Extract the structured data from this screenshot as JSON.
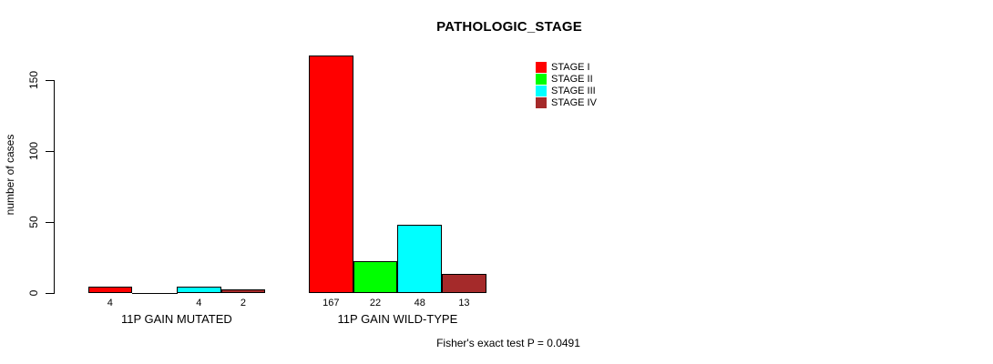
{
  "chart_data": {
    "type": "bar",
    "title": "PATHOLOGIC_STAGE",
    "ylabel": "number of cases",
    "xlabel": "",
    "ylim": [
      0,
      150
    ],
    "yticks": [
      0,
      50,
      100,
      150
    ],
    "grid": false,
    "legend_position": "top-right",
    "categories": [
      "11P GAIN MUTATED",
      "11P GAIN WILD-TYPE"
    ],
    "series": [
      {
        "name": "STAGE I",
        "color": "#ff0000",
        "values": [
          4,
          167
        ]
      },
      {
        "name": "STAGE II",
        "color": "#00ff00",
        "values": [
          0,
          22
        ]
      },
      {
        "name": "STAGE III",
        "color": "#00ffff",
        "values": [
          4,
          48
        ]
      },
      {
        "name": "STAGE IV",
        "color": "#a52a2a",
        "values": [
          2,
          13
        ]
      }
    ],
    "value_labels": [
      [
        "4",
        "",
        "4",
        "2"
      ],
      [
        "167",
        "22",
        "48",
        "13"
      ]
    ],
    "annotation": "Fisher's exact test P = 0.0491"
  }
}
